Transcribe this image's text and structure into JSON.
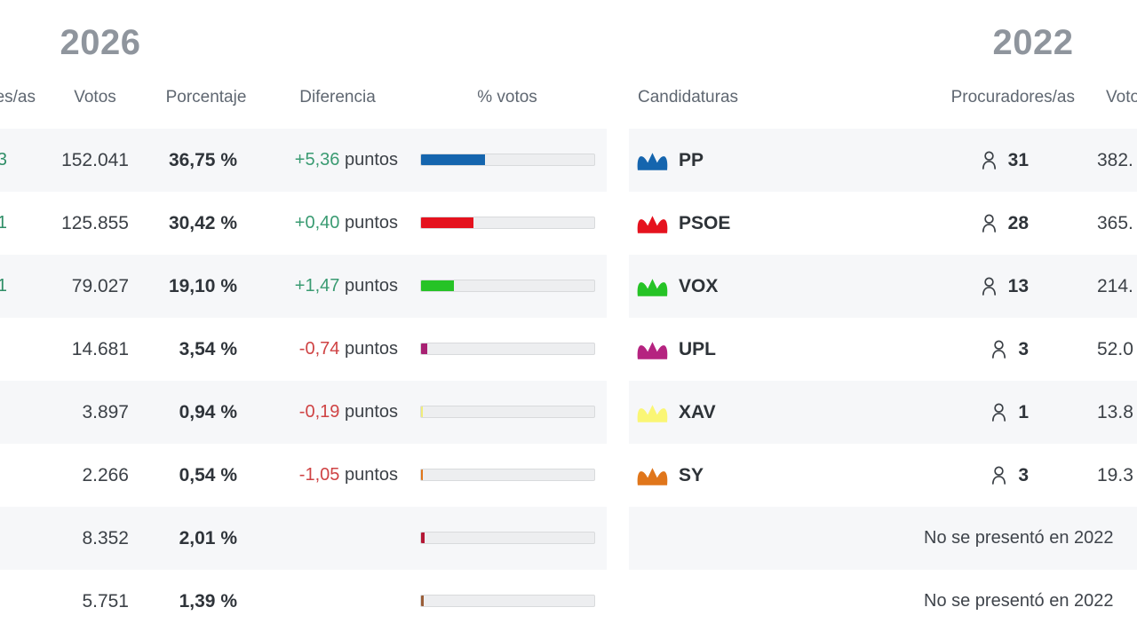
{
  "left_table": {
    "year": "2026",
    "headers": {
      "procuradores": "Procuradores/as",
      "votos": "Votos",
      "porcentaje": "Porcentaje",
      "diferencia": "Diferencia",
      "share": "% votos"
    },
    "diff_positive_color": "#3a9b72",
    "diff_negative_color": "#cf4344",
    "rows": [
      {
        "seat_change": "3",
        "votes": "152.041",
        "pct": "36,75 %",
        "pct_value": 36.75,
        "diff": "+5,36",
        "diff_suffix": " puntos",
        "diff_color": "#3a9b72",
        "bar_color": "#1565ae"
      },
      {
        "seat_change": "1",
        "votes": "125.855",
        "pct": "30,42 %",
        "pct_value": 30.42,
        "diff": "+0,40",
        "diff_suffix": " puntos",
        "diff_color": "#3a9b72",
        "bar_color": "#e5121e"
      },
      {
        "seat_change": "1",
        "votes": "79.027",
        "pct": "19,10 %",
        "pct_value": 19.1,
        "diff": "+1,47",
        "diff_suffix": " puntos",
        "diff_color": "#3a9b72",
        "bar_color": "#26c326"
      },
      {
        "seat_change": "",
        "votes": "14.681",
        "pct": "3,54 %",
        "pct_value": 3.54,
        "diff": "-0,74",
        "diff_suffix": " puntos",
        "diff_color": "#cf4344",
        "bar_color": "#a82173"
      },
      {
        "seat_change": "",
        "votes": "3.897",
        "pct": "0,94 %",
        "pct_value": 0.94,
        "diff": "-0,19",
        "diff_suffix": " puntos",
        "diff_color": "#cf4344",
        "bar_color": "#f0ed79"
      },
      {
        "seat_change": "",
        "votes": "2.266",
        "pct": "0,54 %",
        "pct_value": 0.54,
        "diff": "-1,05",
        "diff_suffix": " puntos",
        "diff_color": "#cf4344",
        "bar_color": "#e0761b"
      },
      {
        "seat_change": "",
        "votes": "8.352",
        "pct": "2,01 %",
        "pct_value": 2.01,
        "diff": "",
        "diff_suffix": "",
        "diff_color": "",
        "bar_color": "#b41735"
      },
      {
        "seat_change": "",
        "votes": "5.751",
        "pct": "1,39 %",
        "pct_value": 1.39,
        "diff": "",
        "diff_suffix": "",
        "diff_color": "",
        "bar_color": "#9a5e38"
      }
    ]
  },
  "right_table": {
    "year": "2022",
    "headers": {
      "candidaturas": "Candidaturas",
      "procuradores": "Procuradores/as",
      "votos": "Votos"
    },
    "rows": [
      {
        "party": "PP",
        "color": "#1565ae",
        "seats": "31",
        "votes": "382.",
        "absent": ""
      },
      {
        "party": "PSOE",
        "color": "#e5121e",
        "seats": "28",
        "votes": "365.",
        "absent": ""
      },
      {
        "party": "VOX",
        "color": "#26c326",
        "seats": "13",
        "votes": "214.",
        "absent": ""
      },
      {
        "party": "UPL",
        "color": "#b52380",
        "seats": "3",
        "votes": "52.0",
        "absent": ""
      },
      {
        "party": "XAV",
        "color": "#faf675",
        "seats": "1",
        "votes": "13.8",
        "absent": ""
      },
      {
        "party": "SY",
        "color": "#e0761b",
        "seats": "3",
        "votes": "19.3",
        "absent": ""
      },
      {
        "party": "",
        "color": "",
        "seats": "",
        "votes": "",
        "absent": "No se presentó en 2022"
      },
      {
        "party": "",
        "color": "",
        "seats": "",
        "votes": "",
        "absent": "No se presentó en 2022"
      }
    ]
  },
  "chart_data": [
    {
      "type": "bar",
      "title": "2026",
      "categories": [
        "PP",
        "PSOE",
        "VOX",
        "UPL",
        "XAV",
        "SY",
        "",
        ""
      ],
      "series": [
        {
          "name": "% votos",
          "values": [
            36.75,
            30.42,
            19.1,
            3.54,
            0.94,
            0.54,
            2.01,
            1.39
          ]
        },
        {
          "name": "Votos",
          "values": [
            152041,
            125855,
            79027,
            14681,
            3897,
            2266,
            8352,
            5751
          ]
        },
        {
          "name": "Diferencia (puntos)",
          "values": [
            5.36,
            0.4,
            1.47,
            -0.74,
            -0.19,
            -1.05,
            null,
            null
          ]
        }
      ],
      "bar_colors": [
        "#1565ae",
        "#e5121e",
        "#26c326",
        "#a82173",
        "#f0ed79",
        "#e0761b",
        "#b41735",
        "#9a5e38"
      ],
      "xlabel": "",
      "ylabel": "% votos",
      "ylim": [
        0,
        100
      ],
      "legend_position": "none",
      "grid": false
    },
    {
      "type": "table",
      "title": "2022",
      "columns": [
        "Candidaturas",
        "Procuradores/as",
        "Votos"
      ],
      "rows": [
        [
          "PP",
          "31",
          "382."
        ],
        [
          "PSOE",
          "28",
          "365."
        ],
        [
          "VOX",
          "13",
          "214."
        ],
        [
          "UPL",
          "3",
          "52.0"
        ],
        [
          "XAV",
          "1",
          "13.8"
        ],
        [
          "SY",
          "3",
          "19.3"
        ],
        [
          "",
          "No se presentó en 2022",
          ""
        ],
        [
          "",
          "No se presentó en 2022",
          ""
        ]
      ]
    }
  ]
}
